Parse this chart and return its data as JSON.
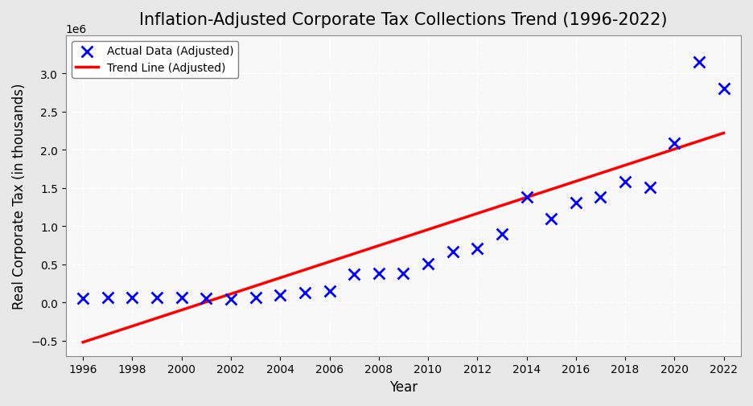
{
  "title": "Inflation-Adjusted Corporate Tax Collections Trend (1996-2022)",
  "xlabel": "Year",
  "ylabel": "Real Corporate Tax (in thousands)",
  "years": [
    1996,
    1997,
    1998,
    1999,
    2000,
    2001,
    2002,
    2003,
    2004,
    2005,
    2006,
    2007,
    2008,
    2009,
    2010,
    2011,
    2012,
    2013,
    2014,
    2015,
    2016,
    2017,
    2018,
    2019,
    2020,
    2021,
    2022
  ],
  "values": [
    55000,
    70000,
    70000,
    70000,
    70000,
    55000,
    50000,
    70000,
    100000,
    130000,
    150000,
    370000,
    380000,
    380000,
    510000,
    670000,
    710000,
    900000,
    1380000,
    1100000,
    1310000,
    1380000,
    1580000,
    1510000,
    2090000,
    3150000,
    2800000
  ],
  "trend_x": [
    1996,
    2022
  ],
  "trend_y": [
    -520000,
    2220000
  ],
  "scatter_color": "blue",
  "scatter_marker": "x",
  "scatter_markersize": 10,
  "scatter_linewidths": 2,
  "trend_color": "red",
  "trend_linewidth": 2.5,
  "plot_bg_color": "#f8f8f8",
  "fig_bg_color": "#e8e8e8",
  "grid_color": "white",
  "grid_linestyle": "--",
  "legend_labels": [
    "Actual Data (Adjusted)",
    "Trend Line (Adjusted)"
  ],
  "ylim": [
    -700000,
    3500000
  ],
  "xlim": [
    1995.3,
    2022.7
  ],
  "yticks": [
    -500000,
    0,
    500000,
    1000000,
    1500000,
    2000000,
    2500000,
    3000000
  ],
  "xticks": [
    1996,
    1998,
    2000,
    2002,
    2004,
    2006,
    2008,
    2010,
    2012,
    2014,
    2016,
    2018,
    2020,
    2022
  ],
  "title_fontsize": 15,
  "label_fontsize": 12,
  "tick_fontsize": 10
}
